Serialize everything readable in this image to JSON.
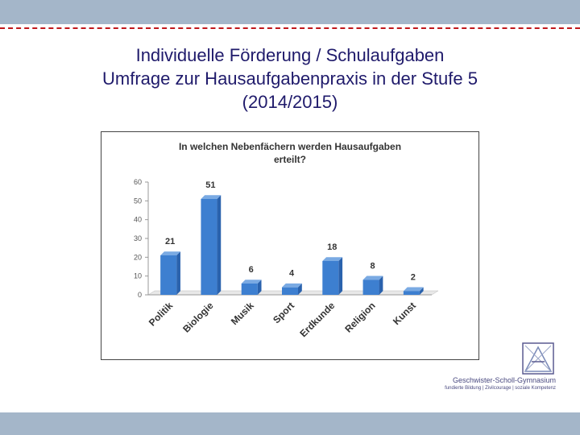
{
  "slide": {
    "title_line1": "Individuelle Förderung / Schulaufgaben",
    "title_line2": "Umfrage zur Hausaufgabenpraxis in der Stufe 5",
    "title_line3": "(2014/2015)"
  },
  "colors": {
    "bar": "#3d7fd0",
    "bar_dark": "#2a62ad",
    "bar_top": "#7aaae3",
    "header_bar": "#a4b6c9",
    "accent_line": "#c0181c",
    "title_text": "#1f1a6b"
  },
  "chart_data": {
    "type": "bar",
    "title_line1": "In welchen Nebenfächern werden Hausaufgaben",
    "title_line2": "erteilt?",
    "categories": [
      "Politik",
      "Biologie",
      "Musik",
      "Sport",
      "Erdkunde",
      "Religion",
      "Kunst"
    ],
    "values": [
      21,
      51,
      6,
      4,
      18,
      8,
      2
    ],
    "ylim": [
      0,
      60
    ],
    "yticks": [
      0,
      10,
      20,
      30,
      40,
      50,
      60
    ],
    "xlabel": "",
    "ylabel": "",
    "grid": false,
    "legend": "none",
    "style": "3d-column"
  },
  "logo": {
    "name": "Geschwister-Scholl-Gymnasium",
    "tagline": "fundierte Bildung | Zivilcourage | soziale Kompetenz"
  }
}
